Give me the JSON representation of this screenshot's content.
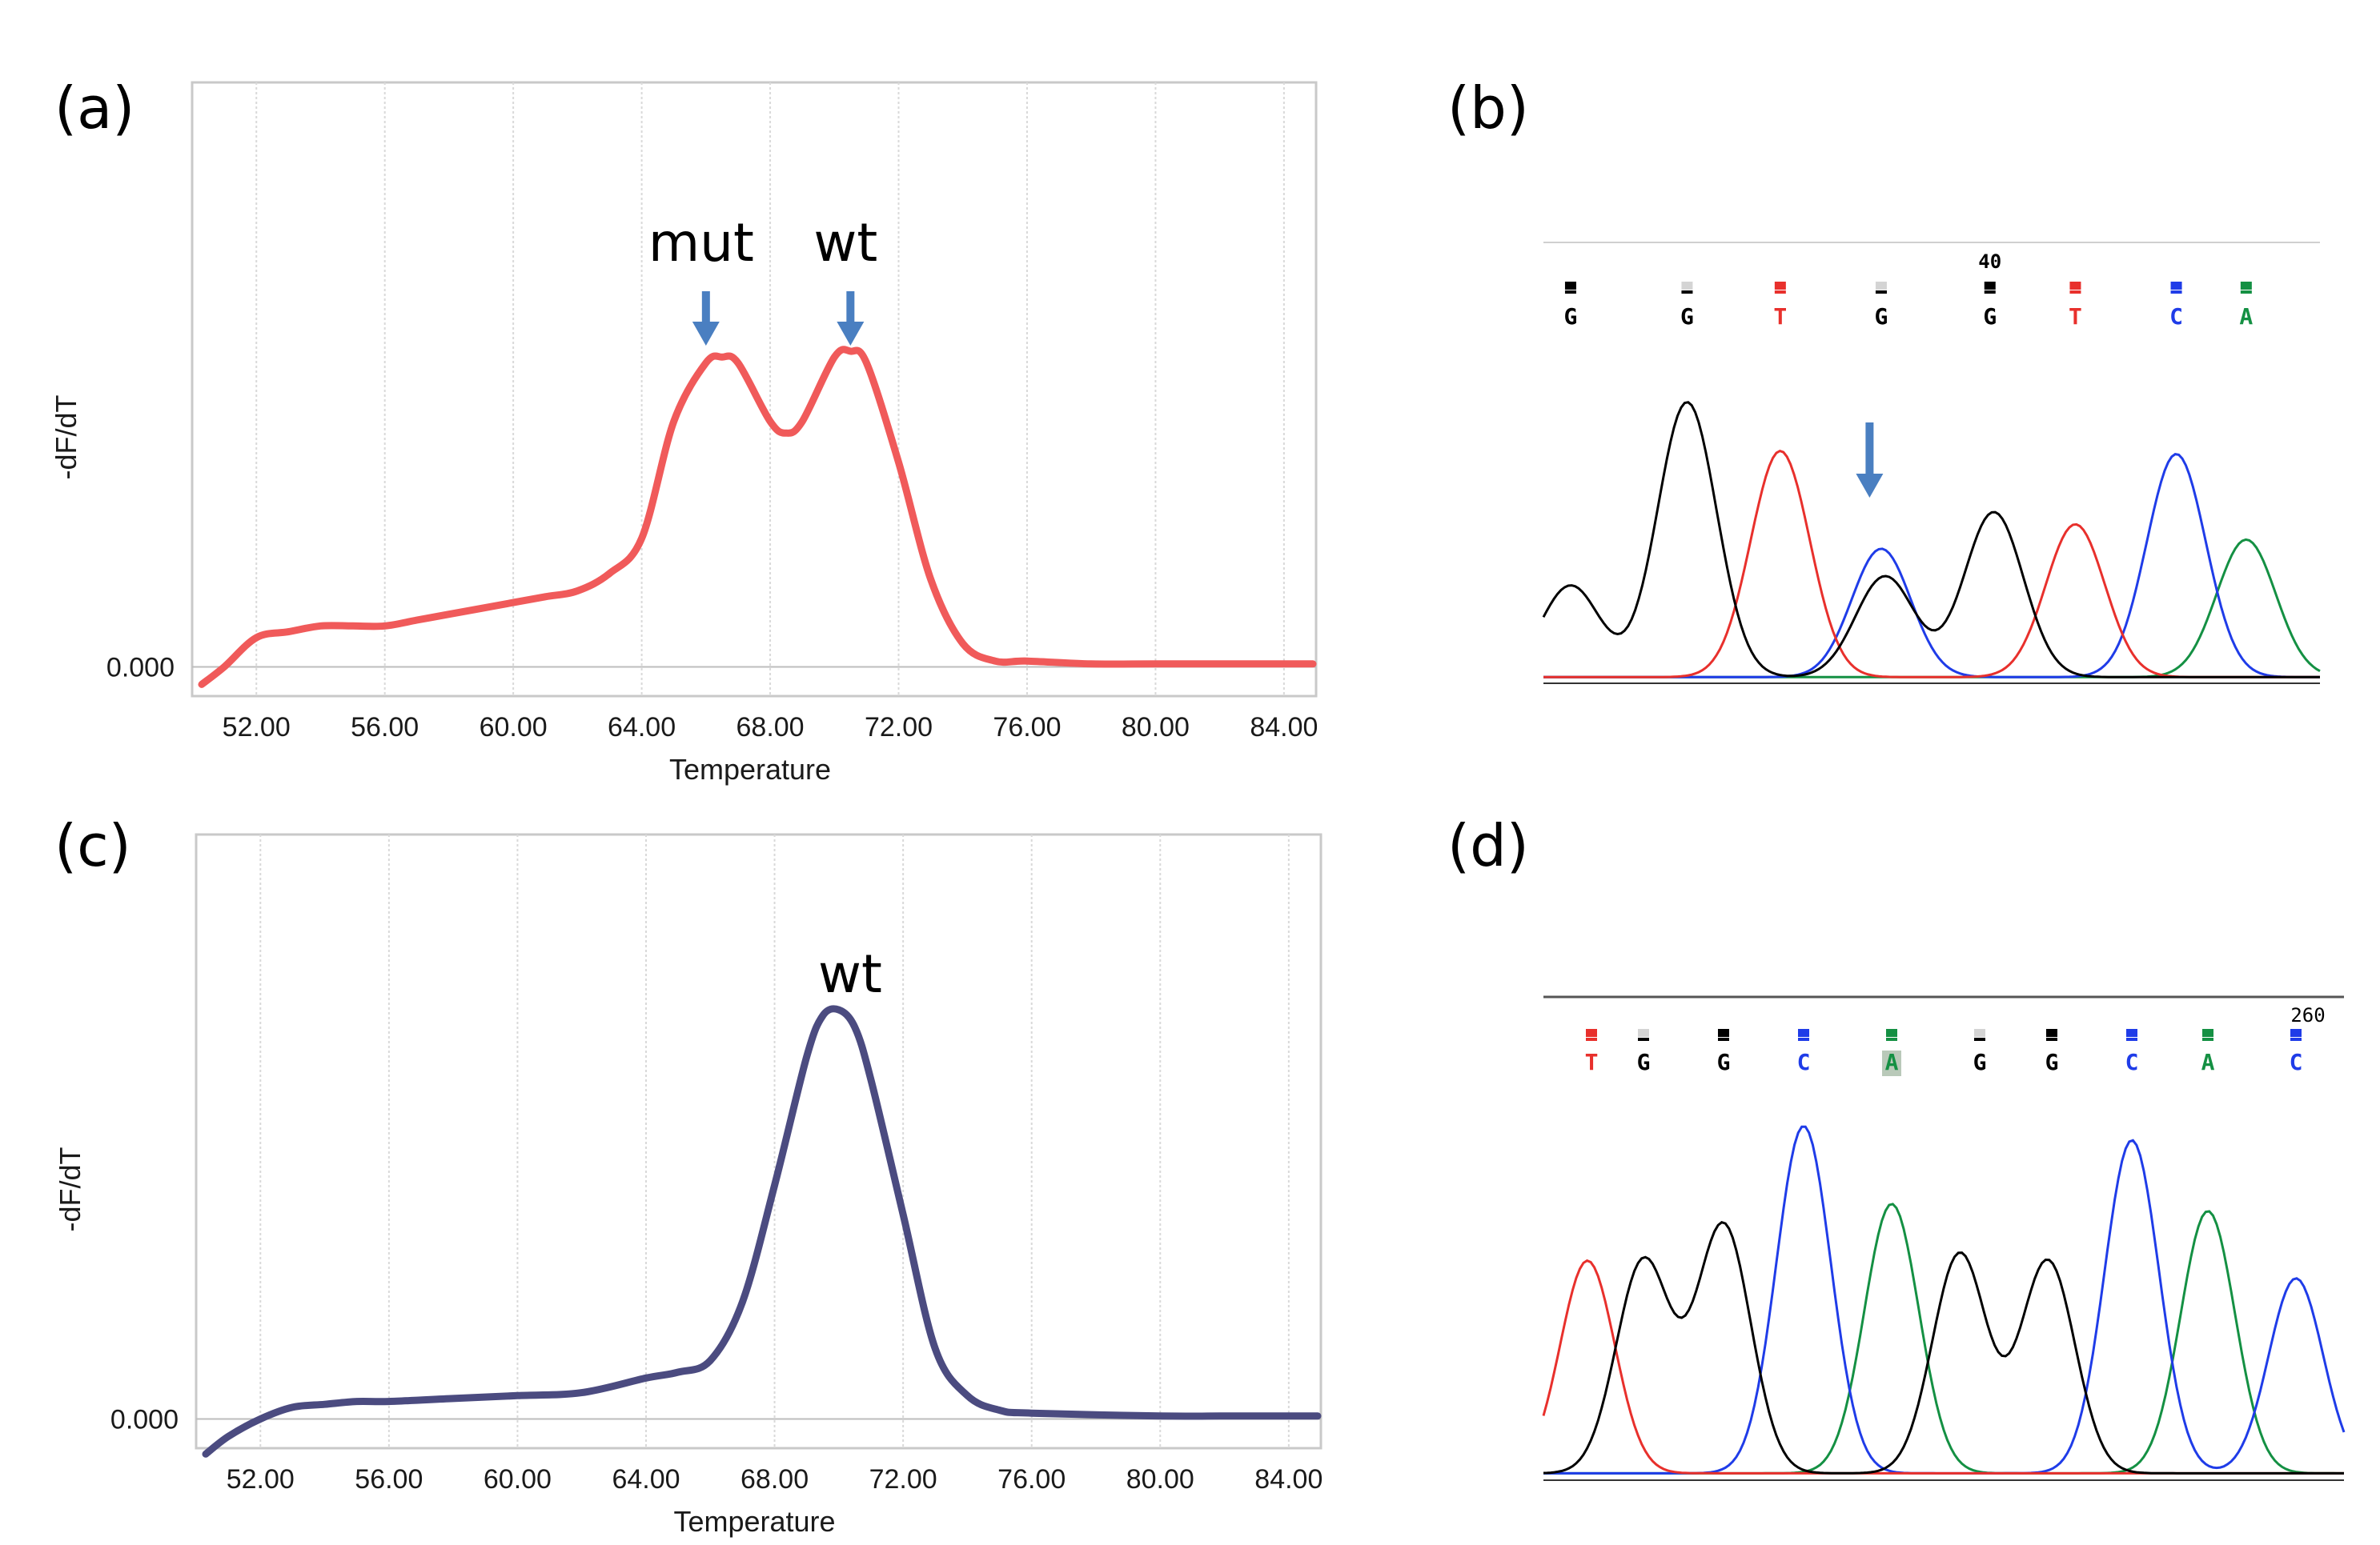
{
  "colors": {
    "melt_a": "#f05a5a",
    "melt_c": "#4b4b80",
    "arrow": "#4a7fc1",
    "frame": "#c9c9c9",
    "grid": "#d9d9d9",
    "trace_G": "#000000",
    "trace_T": "#e8302c",
    "trace_C": "#1f3ce8",
    "trace_A": "#149043",
    "base_N": "#d4d4d4"
  },
  "chart_data": [
    {
      "panel": "(a)",
      "type": "line",
      "series_name": "melt curve",
      "xlabel": "Temperature",
      "ylabel": "-dF/dT",
      "xlim": [
        50.0,
        85.0
      ],
      "ylim": [
        -0.05,
        1.0
      ],
      "x_ticks": [
        "52.00",
        "56.00",
        "60.00",
        "64.00",
        "68.00",
        "72.00",
        "76.00",
        "80.00",
        "84.00"
      ],
      "x_tick_values": [
        52,
        56,
        60,
        64,
        68,
        72,
        76,
        80,
        84
      ],
      "zero_label": "0.000",
      "x": [
        50.3,
        51.0,
        52.0,
        53.0,
        54.0,
        55.0,
        56.0,
        57.0,
        58.0,
        59.0,
        60.0,
        61.0,
        62.0,
        63.0,
        64.0,
        65.0,
        66.0,
        66.5,
        67.0,
        68.0,
        68.5,
        69.0,
        70.0,
        70.5,
        71.0,
        72.0,
        73.0,
        74.0,
        75.0,
        76.0,
        78.0,
        80.0,
        84.9
      ],
      "y": [
        -0.03,
        0.0,
        0.05,
        0.06,
        0.07,
        0.07,
        0.07,
        0.08,
        0.09,
        0.1,
        0.11,
        0.12,
        0.13,
        0.16,
        0.22,
        0.42,
        0.52,
        0.53,
        0.52,
        0.42,
        0.4,
        0.42,
        0.53,
        0.54,
        0.52,
        0.35,
        0.15,
        0.04,
        0.01,
        0.01,
        0.005,
        0.005,
        0.005
      ],
      "annotations": [
        {
          "text": "mut",
          "x": 66.0
        },
        {
          "text": "wt",
          "x": 70.5
        }
      ]
    },
    {
      "panel": "(c)",
      "type": "line",
      "series_name": "melt curve",
      "xlabel": "Temperature",
      "ylabel": "-dF/dT",
      "xlim": [
        50.0,
        85.0
      ],
      "ylim": [
        -0.05,
        1.0
      ],
      "x_ticks": [
        "52.00",
        "56.00",
        "60.00",
        "64.00",
        "68.00",
        "72.00",
        "76.00",
        "80.00",
        "84.00"
      ],
      "x_tick_values": [
        52,
        56,
        60,
        64,
        68,
        72,
        76,
        80,
        84
      ],
      "zero_label": "0.000",
      "x": [
        50.3,
        51.0,
        52.0,
        53.0,
        54.0,
        55.0,
        56.0,
        58.0,
        60.0,
        62.0,
        64.0,
        65.0,
        66.0,
        67.0,
        68.0,
        69.0,
        69.5,
        70.0,
        70.5,
        71.0,
        72.0,
        73.0,
        74.0,
        75.0,
        76.0,
        80.0,
        82.0,
        84.9
      ],
      "y": [
        -0.06,
        -0.03,
        0.0,
        0.02,
        0.025,
        0.03,
        0.03,
        0.035,
        0.04,
        0.045,
        0.07,
        0.08,
        0.1,
        0.2,
        0.4,
        0.62,
        0.69,
        0.7,
        0.67,
        0.58,
        0.35,
        0.12,
        0.04,
        0.015,
        0.01,
        0.005,
        0.005,
        0.005
      ],
      "annotations": [
        {
          "text": "wt",
          "x": 70.5
        }
      ]
    },
    {
      "panel": "(b)",
      "type": "line",
      "subtype": "chromatogram",
      "position_label": "40",
      "position_index": 4,
      "bases": [
        "G",
        "G",
        "T",
        "G",
        "G",
        "T",
        "C",
        "A"
      ],
      "base_positions": [
        0.035,
        0.185,
        0.305,
        0.435,
        0.575,
        0.685,
        0.815,
        0.905
      ],
      "peaks": {
        "G": [
          [
            0.035,
            0.3
          ],
          [
            0.185,
            0.9
          ],
          [
            0.44,
            0.33
          ],
          [
            0.58,
            0.54
          ]
        ],
        "T": [
          [
            0.305,
            0.74
          ],
          [
            0.685,
            0.5
          ]
        ],
        "C": [
          [
            0.435,
            0.42
          ],
          [
            0.815,
            0.73
          ]
        ],
        "A": [
          [
            0.905,
            0.45
          ]
        ]
      },
      "marker_x": 0.42
    },
    {
      "panel": "(d)",
      "type": "line",
      "subtype": "chromatogram",
      "position_label": "260",
      "bases": [
        "T",
        "G",
        "G",
        "C",
        "A",
        "G",
        "G",
        "C",
        "A",
        "C"
      ],
      "base_positions": [
        0.06,
        0.125,
        0.225,
        0.325,
        0.435,
        0.545,
        0.635,
        0.735,
        0.83,
        0.94
      ],
      "highlight_index": 4,
      "peaks": {
        "T": [
          [
            0.055,
            0.6
          ]
        ],
        "G": [
          [
            0.125,
            0.6
          ],
          [
            0.225,
            0.7
          ],
          [
            0.52,
            0.62
          ],
          [
            0.63,
            0.6
          ]
        ],
        "C": [
          [
            0.325,
            0.98
          ],
          [
            0.735,
            0.94
          ],
          [
            0.94,
            0.55
          ]
        ],
        "A": [
          [
            0.435,
            0.76
          ],
          [
            0.83,
            0.74
          ]
        ]
      }
    }
  ],
  "panel_labels": [
    "(a)",
    "(b)",
    "(c)",
    "(d)"
  ]
}
